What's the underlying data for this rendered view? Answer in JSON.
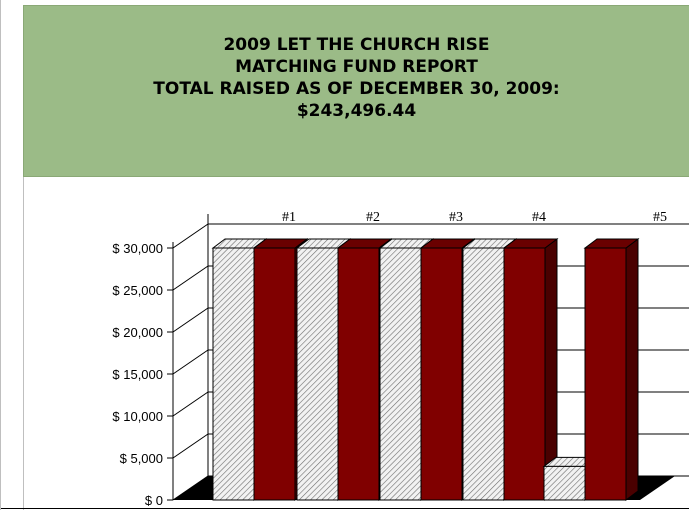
{
  "title": {
    "line1": "2009 LET THE CHURCH RISE",
    "line2": "MATCHING FUND REPORT",
    "line3": "TOTAL RAISED AS OF DECEMBER 30, 2009:",
    "line4": "$243,496.44"
  },
  "chart_data": {
    "type": "bar",
    "categories": [
      "#1",
      "#2",
      "#3",
      "#4",
      "#5"
    ],
    "series": [
      {
        "values": [
          30000,
          30000,
          30000,
          30000,
          4000
        ],
        "color": "#e8e8e8",
        "pattern": "diagonal-hatch"
      },
      {
        "values": [
          30000,
          30000,
          30000,
          30000,
          30000
        ],
        "color": "#800000"
      }
    ],
    "ylim": [
      0,
      30000
    ],
    "yticks": [
      0,
      5000,
      10000,
      15000,
      20000,
      25000,
      30000
    ],
    "ytick_labels": [
      "$ 0",
      "$ 5,000",
      "$ 10,000",
      "$ 15,000",
      "$ 20,000",
      "$ 25,000",
      "$ 30,000"
    ],
    "grid": true,
    "three_d": true
  }
}
